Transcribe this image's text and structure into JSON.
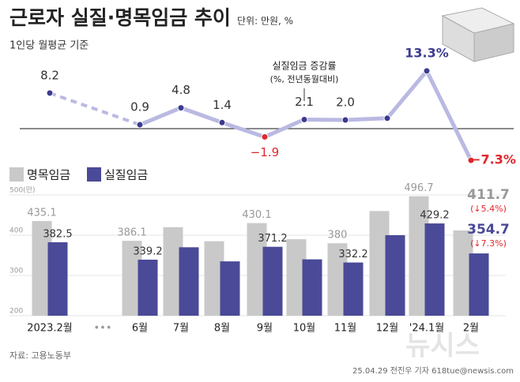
{
  "header": {
    "title": "근로자 실질·명목임금 추이",
    "unit": "단위: 만원, %",
    "subtitle": "1인당 월평균 기준"
  },
  "chart_data": [
    {
      "type": "line",
      "annotation": [
        "실질임금 증감률",
        "(%, 전년동월대비)"
      ],
      "categories": [
        "2023.2월",
        "•••",
        "6월",
        "7월",
        "8월",
        "9월",
        "10월",
        "11월",
        "12월",
        "'24.1월",
        "2월"
      ],
      "values": [
        8.2,
        null,
        0.9,
        4.8,
        1.4,
        -1.9,
        2.1,
        2.0,
        2.4,
        13.3,
        -7.3
      ],
      "value_labels": [
        "8.2",
        null,
        "0.9",
        "4.8",
        "1.4",
        "−1.9",
        "2.1",
        "2.0",
        null,
        "13.3%",
        "−7.3%"
      ],
      "color": "#b9b9e2",
      "point_color": "#3b3b8f",
      "negative_color": "#e0262b",
      "ylim": [
        -9,
        15
      ]
    },
    {
      "type": "bar",
      "categories": [
        "2023.2월",
        "•••",
        "6월",
        "7월",
        "8월",
        "9월",
        "10월",
        "11월",
        "12월",
        "'24.1월",
        "2월"
      ],
      "series": [
        {
          "name": "명목임금",
          "color": "#c9c9c9",
          "values": [
            435.1,
            null,
            386.1,
            420,
            385,
            430.1,
            390,
            380,
            460,
            496.7,
            411.7
          ],
          "value_labels": [
            "435.1",
            null,
            "386.1",
            null,
            null,
            "430.1",
            null,
            "380",
            null,
            "496.7",
            "411.7"
          ]
        },
        {
          "name": "실질임금",
          "color": "#4a4a98",
          "values": [
            382.5,
            null,
            339.2,
            370,
            335,
            371.2,
            340,
            332.2,
            400,
            429.2,
            354.7
          ],
          "value_labels": [
            "382.5",
            null,
            "339.2",
            null,
            null,
            "371.2",
            null,
            "332.2",
            null,
            "429.2",
            "354.7"
          ]
        }
      ],
      "annotations": [
        "(↓5.4%)",
        "(↓7.3%)"
      ],
      "ylim": [
        200,
        500
      ],
      "yticks": [
        {
          "value": 500,
          "label": "500(만)"
        },
        400,
        300,
        200
      ]
    }
  ],
  "footer": {
    "source": "자료: 고용노동부",
    "credit": "25.04.29 전진우 기자 618tue@newsis.com",
    "watermark": "뉴시스"
  }
}
